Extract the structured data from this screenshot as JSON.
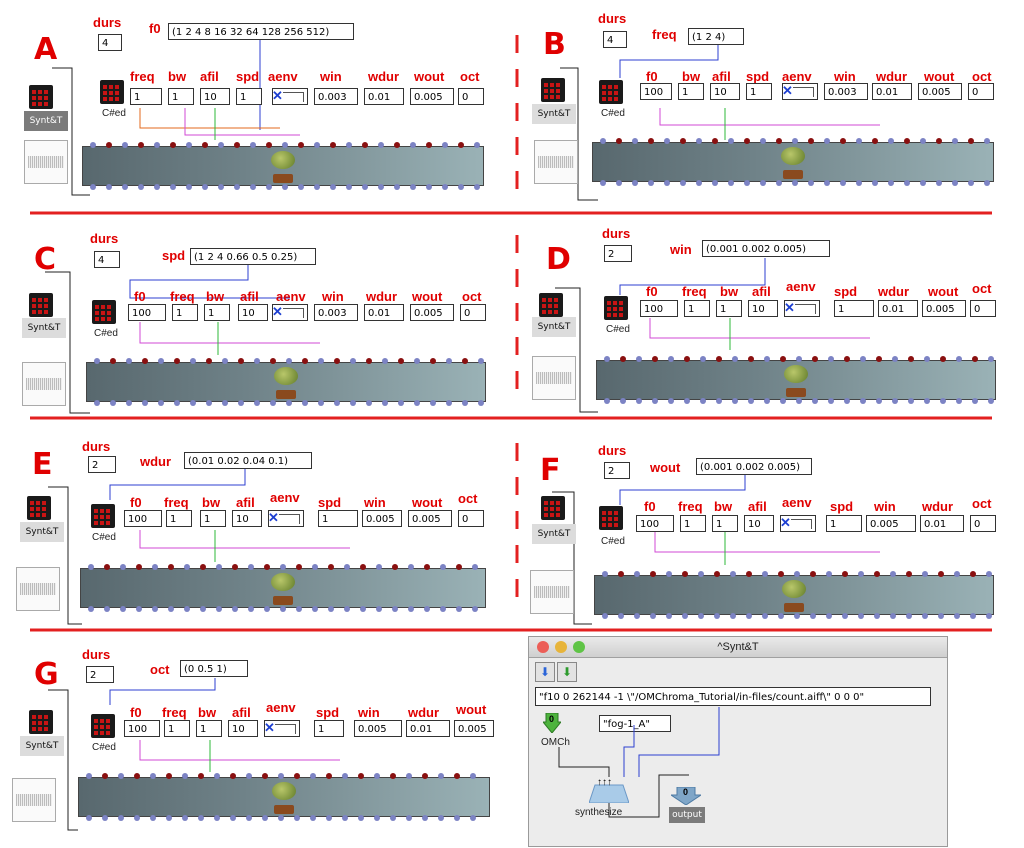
{
  "common": {
    "durs_label": "durs",
    "synt_label": "Synt&T",
    "ced_label": "C#ed"
  },
  "blocks": {
    "A": {
      "letter": "A",
      "durs_value": "4",
      "list_label": "f0",
      "list_value": "(1 2 4 8 16 32 64 128 256 512)",
      "params": [
        {
          "label": "freq",
          "value": "1"
        },
        {
          "label": "bw",
          "value": "1"
        },
        {
          "label": "afil",
          "value": "10"
        },
        {
          "label": "spd",
          "value": "1"
        },
        {
          "label": "aenv",
          "value": ""
        },
        {
          "label": "win",
          "value": "0.003"
        },
        {
          "label": "wdur",
          "value": "0.01"
        },
        {
          "label": "wout",
          "value": "0.005"
        },
        {
          "label": "oct",
          "value": "0"
        }
      ]
    },
    "B": {
      "letter": "B",
      "durs_value": "4",
      "list_label": "freq",
      "list_value": "(1 2 4)",
      "params": [
        {
          "label": "f0",
          "value": "100"
        },
        {
          "label": "bw",
          "value": "1"
        },
        {
          "label": "afil",
          "value": "10"
        },
        {
          "label": "spd",
          "value": "1"
        },
        {
          "label": "aenv",
          "value": ""
        },
        {
          "label": "win",
          "value": "0.003"
        },
        {
          "label": "wdur",
          "value": "0.01"
        },
        {
          "label": "wout",
          "value": "0.005"
        },
        {
          "label": "oct",
          "value": "0"
        }
      ]
    },
    "C": {
      "letter": "C",
      "durs_value": "4",
      "list_label": "spd",
      "list_value": "(1 2 4 0.66 0.5 0.25)",
      "params": [
        {
          "label": "f0",
          "value": "100"
        },
        {
          "label": "freq",
          "value": "1"
        },
        {
          "label": "bw",
          "value": "1"
        },
        {
          "label": "afil",
          "value": "10"
        },
        {
          "label": "aenv",
          "value": ""
        },
        {
          "label": "win",
          "value": "0.003"
        },
        {
          "label": "wdur",
          "value": "0.01"
        },
        {
          "label": "wout",
          "value": "0.005"
        },
        {
          "label": "oct",
          "value": "0"
        }
      ]
    },
    "D": {
      "letter": "D",
      "durs_value": "2",
      "list_label": "win",
      "list_value": "(0.001 0.002 0.005)",
      "params": [
        {
          "label": "f0",
          "value": "100"
        },
        {
          "label": "freq",
          "value": "1"
        },
        {
          "label": "bw",
          "value": "1"
        },
        {
          "label": "afil",
          "value": "10"
        },
        {
          "label": "aenv",
          "value": ""
        },
        {
          "label": "spd",
          "value": "1"
        },
        {
          "label": "wdur",
          "value": "0.01"
        },
        {
          "label": "wout",
          "value": "0.005"
        },
        {
          "label": "oct",
          "value": "0"
        }
      ]
    },
    "E": {
      "letter": "E",
      "durs_value": "2",
      "list_label": "wdur",
      "list_value": "(0.01 0.02 0.04 0.1)",
      "params": [
        {
          "label": "f0",
          "value": "100"
        },
        {
          "label": "freq",
          "value": "1"
        },
        {
          "label": "bw",
          "value": "1"
        },
        {
          "label": "afil",
          "value": "10"
        },
        {
          "label": "aenv",
          "value": ""
        },
        {
          "label": "spd",
          "value": "1"
        },
        {
          "label": "win",
          "value": "0.005"
        },
        {
          "label": "wout",
          "value": "0.005"
        },
        {
          "label": "oct",
          "value": "0"
        }
      ]
    },
    "F": {
      "letter": "F",
      "durs_value": "2",
      "list_label": "wout",
      "list_value": "(0.001 0.002 0.005)",
      "params": [
        {
          "label": "f0",
          "value": "100"
        },
        {
          "label": "freq",
          "value": "1"
        },
        {
          "label": "bw",
          "value": "1"
        },
        {
          "label": "afil",
          "value": "10"
        },
        {
          "label": "aenv",
          "value": ""
        },
        {
          "label": "spd",
          "value": "1"
        },
        {
          "label": "win",
          "value": "0.005"
        },
        {
          "label": "wdur",
          "value": "0.01"
        },
        {
          "label": "oct",
          "value": "0"
        }
      ]
    },
    "G": {
      "letter": "G",
      "durs_value": "2",
      "list_label": "oct",
      "list_value": "(0 0.5 1)",
      "params": [
        {
          "label": "f0",
          "value": "100"
        },
        {
          "label": "freq",
          "value": "1"
        },
        {
          "label": "bw",
          "value": "1"
        },
        {
          "label": "afil",
          "value": "10"
        },
        {
          "label": "aenv",
          "value": ""
        },
        {
          "label": "spd",
          "value": "1"
        },
        {
          "label": "win",
          "value": "0.005"
        },
        {
          "label": "wdur",
          "value": "0.01"
        },
        {
          "label": "wout",
          "value": "0.005"
        }
      ]
    }
  },
  "window": {
    "title": "^Synt&T",
    "nav_down_icon": "blue-down-arrow-icon",
    "nav_up_icon": "green-down-arrow-icon",
    "string_value": "\"f10 0 262144 -1 \\\"/OMChroma_Tutorial/in-files/count.aiff\\\" 0 0 0\"",
    "fog_value": "\"fog-1_A\"",
    "omch_label": "OMCh",
    "omch_value": "0",
    "synthesize_label": "synthesize",
    "output_label": "output",
    "output_value": "0",
    "colors": {
      "close": "#ec5e57",
      "minimize": "#e7b43a",
      "zoom": "#5fc446"
    }
  },
  "colors": {
    "accent_red": "#e00000",
    "patch_panel": "#6f8288"
  }
}
